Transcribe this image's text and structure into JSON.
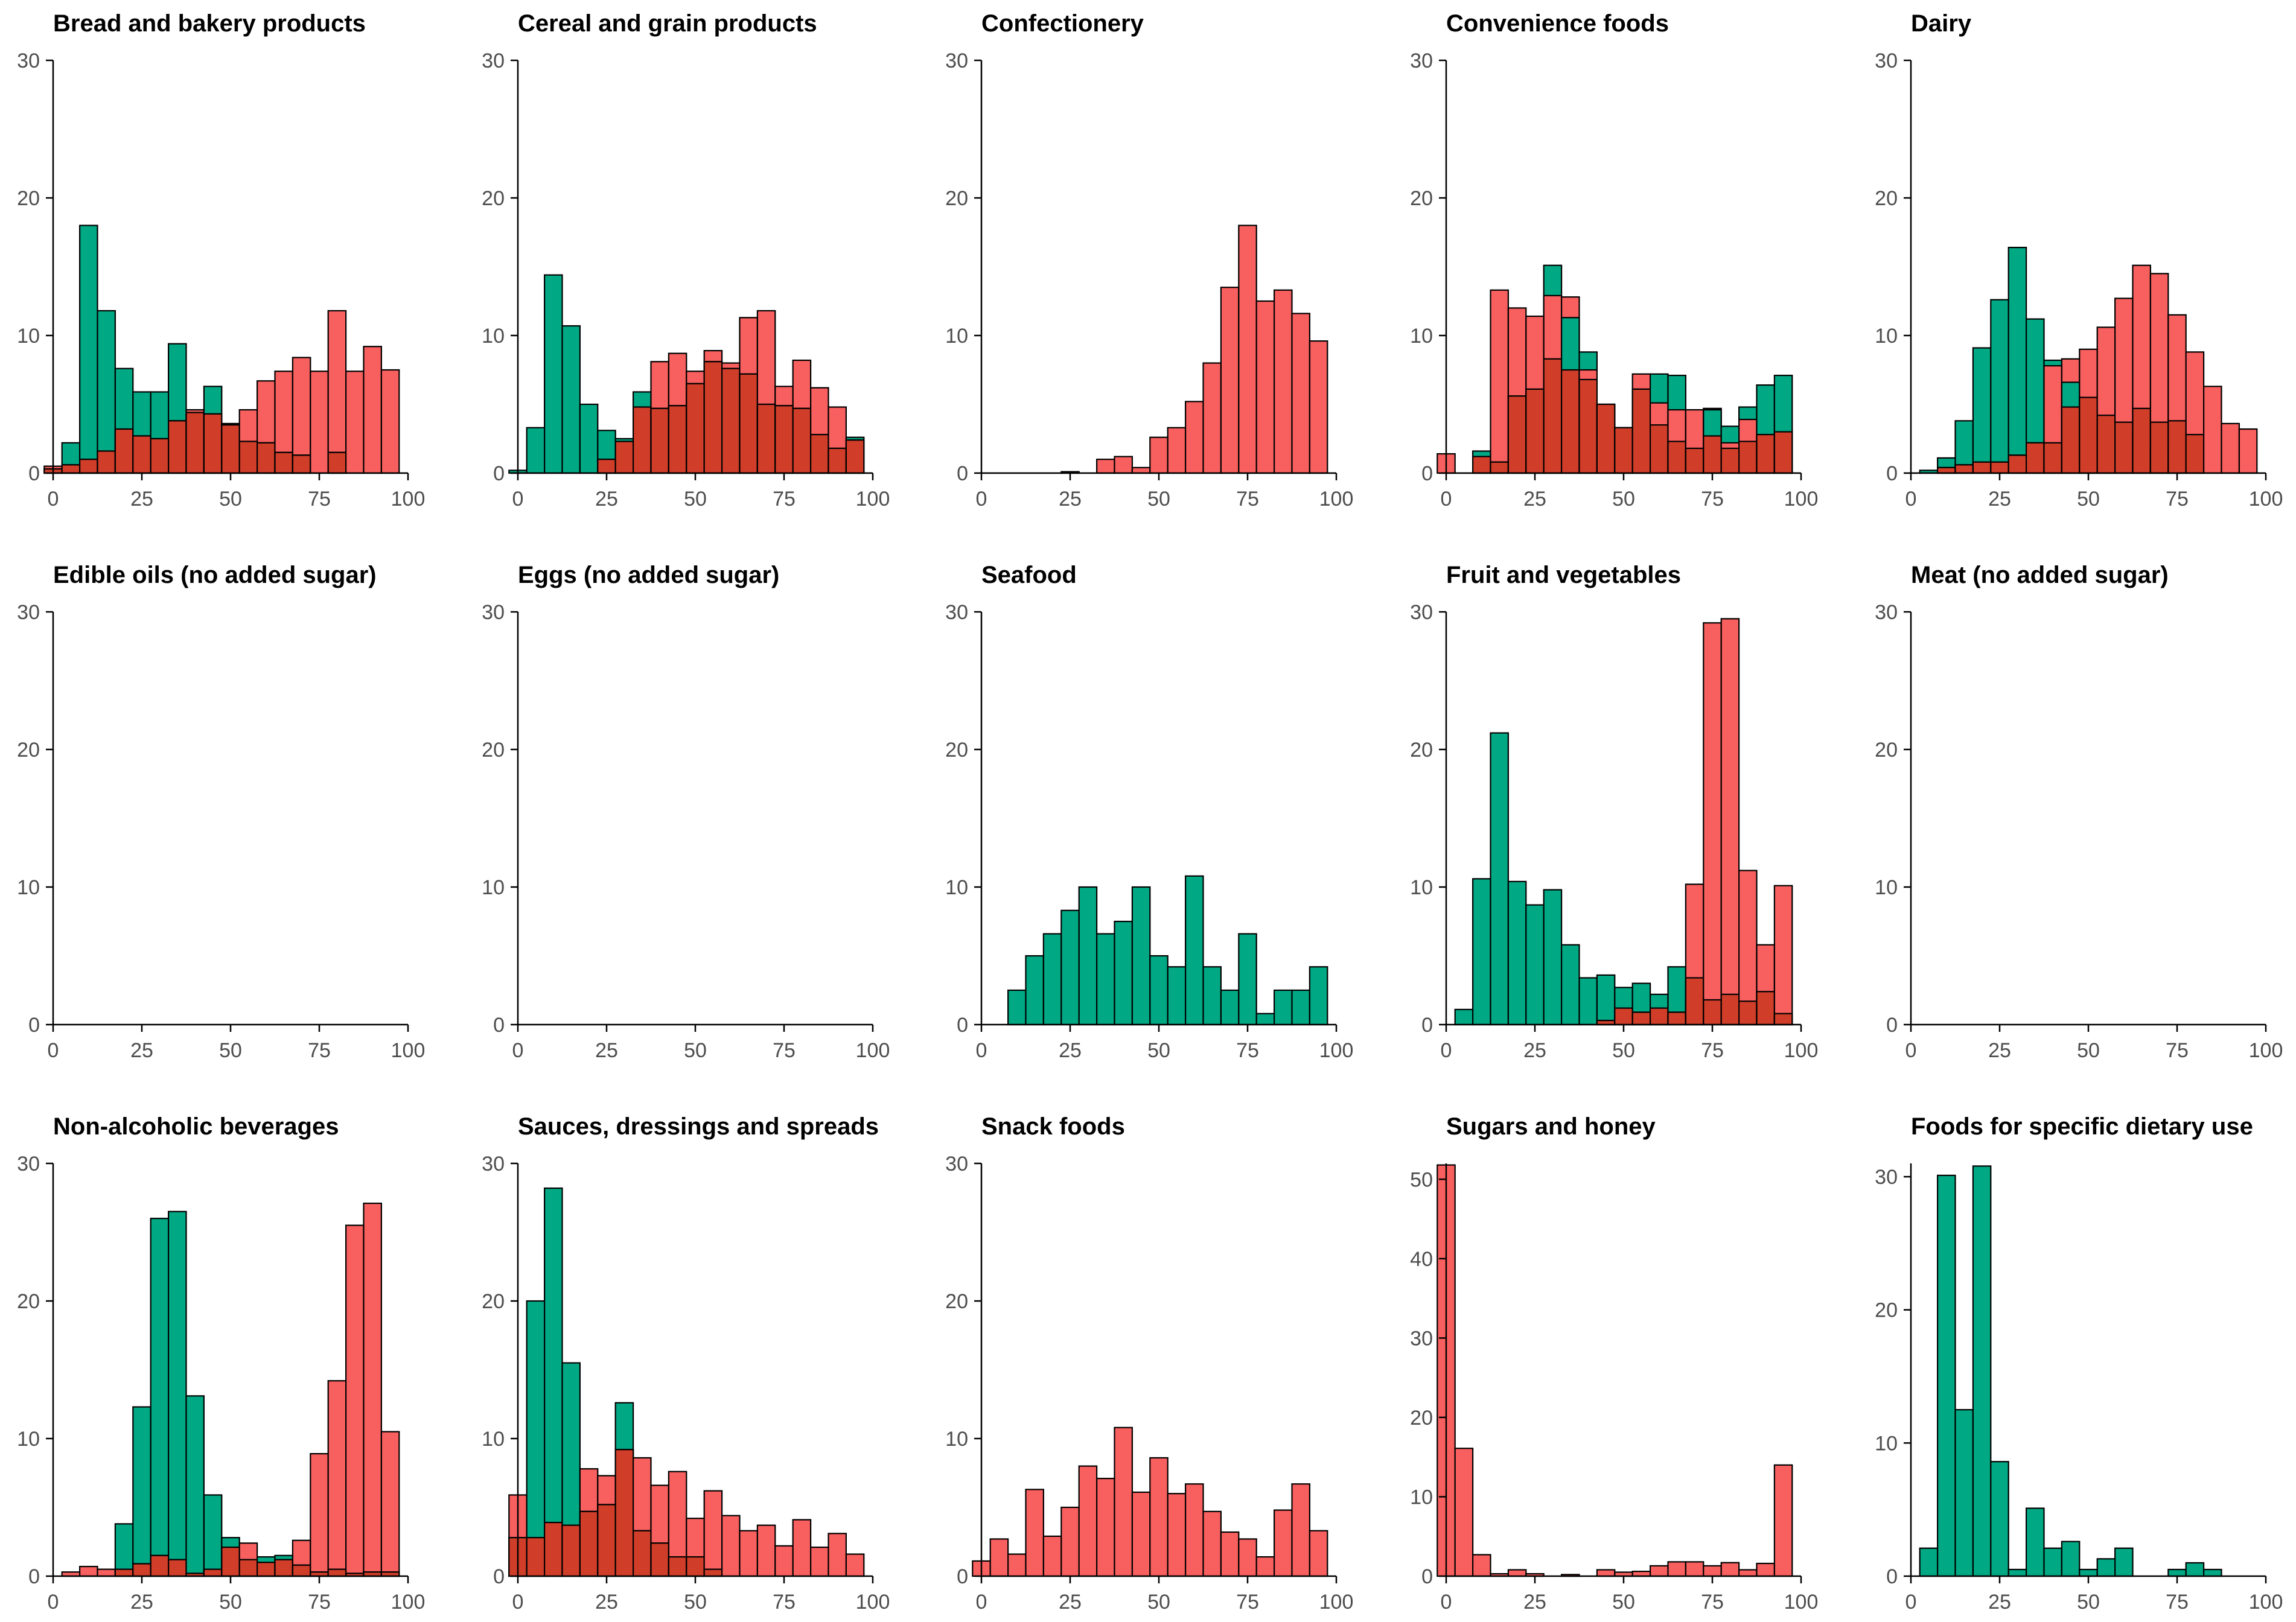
{
  "chart_data": {
    "type": "histogram-faceted",
    "colors": {
      "green": "#00A884",
      "red": "#F8605F",
      "overlap": "#D03E2A",
      "axis": "#000000",
      "tick_text": "#4d4d4d"
    },
    "x_ticks": [
      0,
      25,
      50,
      75,
      100
    ],
    "xlim": [
      0,
      100
    ],
    "bin_width": 5,
    "panels": [
      {
        "title": "Bread and bakery products",
        "y_ticks": [
          0,
          10,
          20,
          30
        ],
        "ylim": [
          0,
          30
        ],
        "green": [
          0.3,
          2.2,
          18,
          11.8,
          7.6,
          5.9,
          5.9,
          9.4,
          4.4,
          6.3,
          3.6,
          2.3,
          2.2,
          1.5,
          1.3,
          0,
          1.5,
          0,
          0,
          0
        ],
        "red": [
          0.5,
          0.6,
          1.0,
          1.6,
          3.2,
          2.7,
          2.5,
          3.8,
          4.6,
          4.3,
          3.5,
          4.6,
          6.7,
          7.4,
          8.4,
          7.4,
          11.8,
          7.4,
          9.2,
          7.5
        ],
        "overlap": [
          0.3,
          0.6,
          1.0,
          1.6,
          3.2,
          2.7,
          2.5,
          3.8,
          4.4,
          4.3,
          3.5,
          2.3,
          2.2,
          1.5,
          1.3,
          0,
          1.5,
          0,
          0,
          0
        ]
      },
      {
        "title": "Cereal and grain products",
        "y_ticks": [
          0,
          10,
          20,
          30
        ],
        "ylim": [
          0,
          30
        ],
        "green": [
          0.2,
          3.3,
          14.4,
          10.7,
          5.0,
          3.1,
          2.5,
          5.9,
          4.7,
          4.9,
          6.5,
          8.1,
          7.6,
          7.2,
          5.0,
          4.9,
          4.7,
          2.8,
          1.8,
          2.6
        ],
        "red": [
          0,
          0,
          0,
          0,
          0,
          1.0,
          2.3,
          4.8,
          8.1,
          8.7,
          7.4,
          8.9,
          8.0,
          11.3,
          11.8,
          6.3,
          8.2,
          6.2,
          4.8,
          2.4
        ],
        "overlap": [
          0,
          0,
          0,
          0,
          0,
          1.0,
          2.3,
          4.8,
          4.7,
          4.9,
          6.5,
          8.1,
          7.6,
          7.2,
          5.0,
          4.9,
          4.7,
          2.8,
          1.8,
          2.4
        ]
      },
      {
        "title": "Confectionery",
        "y_ticks": [
          0,
          10,
          20,
          30
        ],
        "ylim": [
          0,
          30
        ],
        "green": [
          0,
          0,
          0,
          0,
          0,
          0,
          0,
          0,
          0,
          0,
          0,
          0,
          0,
          0,
          0,
          0,
          0,
          0,
          0,
          0
        ],
        "red": [
          0,
          0,
          0,
          0,
          0,
          0.1,
          0,
          1.0,
          1.2,
          0.4,
          2.6,
          3.3,
          5.2,
          8.0,
          13.5,
          18.0,
          12.5,
          13.3,
          11.6,
          9.6
        ],
        "overlap": [
          0,
          0,
          0,
          0,
          0,
          0,
          0,
          0,
          0,
          0,
          0,
          0,
          0,
          0,
          0,
          0,
          0,
          0,
          0,
          0
        ]
      },
      {
        "title": "Convenience foods",
        "y_ticks": [
          0,
          10,
          20,
          30
        ],
        "ylim": [
          0,
          30
        ],
        "green": [
          0,
          0,
          1.6,
          0.8,
          5.6,
          6.1,
          15.1,
          11.3,
          8.8,
          5.0,
          3.3,
          6.1,
          7.2,
          7.1,
          4.6,
          4.6,
          3.4,
          4.8,
          6.4,
          7.1
        ],
        "red": [
          1.4,
          0,
          1.2,
          13.3,
          12.0,
          11.4,
          12.9,
          12.8,
          7.5,
          5.0,
          3.3,
          7.2,
          5.1,
          4.6,
          4.6,
          4.7,
          2.2,
          3.9,
          2.8,
          3.0
        ],
        "overlap": [
          0,
          0,
          1.2,
          0.8,
          5.6,
          6.1,
          8.3,
          7.5,
          6.8,
          5.0,
          3.3,
          6.1,
          3.5,
          2.3,
          1.8,
          2.7,
          1.8,
          2.3,
          2.8,
          3.0
        ]
      },
      {
        "title": "Dairy",
        "y_ticks": [
          0,
          10,
          20,
          30
        ],
        "ylim": [
          0,
          30
        ],
        "green": [
          0,
          0.2,
          1.1,
          3.8,
          9.1,
          12.6,
          16.4,
          11.2,
          8.2,
          6.6,
          5.1,
          3.8,
          2.4,
          3.2,
          1.9,
          1.5,
          0.9,
          0,
          0,
          0
        ],
        "red": [
          0,
          0,
          0.4,
          0.6,
          0.8,
          0.8,
          1.3,
          2.2,
          7.8,
          8.3,
          9.0,
          10.6,
          12.7,
          15.1,
          14.5,
          11.5,
          8.8,
          6.3,
          3.6,
          3.2
        ],
        "overlap": [
          0,
          0,
          0.4,
          0.6,
          0.8,
          0.8,
          1.3,
          2.2,
          2.2,
          4.8,
          5.5,
          4.2,
          3.7,
          4.7,
          3.7,
          3.8,
          2.8,
          2.3,
          1.9,
          1.5
        ]
      },
      {
        "title": "Edible oils (no added sugar)",
        "y_ticks": [
          0,
          10,
          20,
          30
        ],
        "ylim": [
          0,
          30
        ],
        "green": [
          0,
          0,
          0,
          0,
          0,
          0,
          0,
          0,
          0,
          0,
          0,
          0,
          0,
          0,
          0,
          0,
          0,
          0,
          0,
          0
        ],
        "red": [
          0,
          0,
          0,
          0,
          0,
          0,
          0,
          0,
          0,
          0,
          0,
          0,
          0,
          0,
          0,
          0,
          0,
          0,
          0,
          0
        ],
        "overlap": [
          0,
          0,
          0,
          0,
          0,
          0,
          0,
          0,
          0,
          0,
          0,
          0,
          0,
          0,
          0,
          0,
          0,
          0,
          0,
          0
        ]
      },
      {
        "title": "Eggs (no added sugar)",
        "y_ticks": [
          0,
          10,
          20,
          30
        ],
        "ylim": [
          0,
          30
        ],
        "green": [
          0,
          0,
          0,
          0,
          0,
          0,
          0,
          0,
          0,
          0,
          0,
          0,
          0,
          0,
          0,
          0,
          0,
          0,
          0,
          0
        ],
        "red": [
          0,
          0,
          0,
          0,
          0,
          0,
          0,
          0,
          0,
          0,
          0,
          0,
          0,
          0,
          0,
          0,
          0,
          0,
          0,
          0
        ],
        "overlap": [
          0,
          0,
          0,
          0,
          0,
          0,
          0,
          0,
          0,
          0,
          0,
          0,
          0,
          0,
          0,
          0,
          0,
          0,
          0,
          0
        ]
      },
      {
        "title": "Seafood",
        "y_ticks": [
          0,
          10,
          20,
          30
        ],
        "ylim": [
          0,
          30
        ],
        "green": [
          0,
          0,
          2.5,
          5.0,
          6.6,
          8.3,
          10.0,
          6.6,
          7.5,
          10.0,
          5.0,
          4.2,
          10.8,
          4.2,
          2.5,
          6.6,
          0.8,
          2.5,
          2.5,
          4.2
        ],
        "red": [
          0,
          0,
          0,
          0,
          0,
          0,
          0,
          0,
          0,
          0,
          0,
          0,
          0,
          0,
          0,
          0,
          0,
          0,
          0,
          0
        ],
        "overlap": [
          0,
          0,
          0,
          0,
          0,
          0,
          0,
          0,
          0,
          0,
          0,
          0,
          0,
          0,
          0,
          0,
          0,
          0,
          0,
          0
        ]
      },
      {
        "title": "Fruit and vegetables",
        "y_ticks": [
          0,
          10,
          20,
          30
        ],
        "ylim": [
          0,
          30
        ],
        "green": [
          0,
          1.1,
          10.6,
          21.2,
          10.4,
          8.7,
          9.8,
          5.8,
          3.4,
          3.6,
          2.7,
          3.0,
          2.2,
          4.2,
          1.7,
          1.3,
          1.7,
          0.5,
          1.4,
          0.5
        ],
        "red": [
          0,
          0,
          0,
          0,
          0,
          0,
          0,
          0,
          0,
          0.3,
          1.2,
          0.9,
          1.2,
          0.9,
          10.2,
          29.2,
          29.5,
          11.2,
          5.8,
          10.1
        ],
        "overlap": [
          0,
          0,
          0,
          0,
          0,
          0,
          0,
          0,
          0,
          0.3,
          1.2,
          0.9,
          1.2,
          0.9,
          3.4,
          1.8,
          2.2,
          1.7,
          2.4,
          0.8
        ]
      },
      {
        "title": "Meat (no added sugar)",
        "y_ticks": [
          0,
          10,
          20,
          30
        ],
        "ylim": [
          0,
          30
        ],
        "green": [
          0,
          0,
          0,
          0,
          0,
          0,
          0,
          0,
          0,
          0,
          0,
          0,
          0,
          0,
          0,
          0,
          0,
          0,
          0,
          0
        ],
        "red": [
          0,
          0,
          0,
          0,
          0,
          0,
          0,
          0,
          0,
          0,
          0,
          0,
          0,
          0,
          0,
          0,
          0,
          0,
          0,
          0
        ],
        "overlap": [
          0,
          0,
          0,
          0,
          0,
          0,
          0,
          0,
          0,
          0,
          0,
          0,
          0,
          0,
          0,
          0,
          0,
          0,
          0,
          0
        ]
      },
      {
        "title": "Non-alcoholic beverages",
        "y_ticks": [
          0,
          10,
          20,
          30
        ],
        "ylim": [
          0,
          30
        ],
        "green": [
          0,
          0,
          0,
          0,
          3.8,
          12.3,
          26.0,
          26.5,
          13.1,
          5.9,
          2.8,
          1.2,
          1.4,
          1.5,
          0.8,
          0.3,
          0.5,
          0.2,
          0.3,
          0.3
        ],
        "red": [
          0,
          0.3,
          0.7,
          0.5,
          0.5,
          0.9,
          1.5,
          1.2,
          0.2,
          0.5,
          2.1,
          2.4,
          1.0,
          1.2,
          2.6,
          8.9,
          14.2,
          25.5,
          27.1,
          10.5
        ],
        "overlap": [
          0,
          0,
          0,
          0,
          0.5,
          0.9,
          1.5,
          1.2,
          0.2,
          0.5,
          2.1,
          1.2,
          1.0,
          1.2,
          0.8,
          0.3,
          0.5,
          0.2,
          0.3,
          0.3
        ]
      },
      {
        "title": "Sauces, dressings and spreads",
        "y_ticks": [
          0,
          10,
          20,
          30
        ],
        "ylim": [
          0,
          30
        ],
        "green": [
          2.8,
          20.0,
          28.2,
          15.5,
          4.7,
          5.2,
          12.6,
          3.3,
          2.4,
          1.4,
          1.4,
          0.5,
          0,
          0,
          0,
          0,
          0,
          0,
          0,
          0
        ],
        "red": [
          5.9,
          2.8,
          3.9,
          3.7,
          7.8,
          7.3,
          9.2,
          8.6,
          6.6,
          7.6,
          4.2,
          6.2,
          4.4,
          3.3,
          3.7,
          2.2,
          4.1,
          2.1,
          3.1,
          1.6
        ],
        "overlap": [
          2.8,
          2.8,
          3.9,
          3.7,
          4.7,
          5.2,
          9.2,
          3.3,
          2.4,
          1.4,
          1.4,
          0.5,
          0,
          0,
          0,
          0,
          0,
          0,
          0,
          0
        ]
      },
      {
        "title": "Snack foods",
        "y_ticks": [
          0,
          10,
          20,
          30
        ],
        "ylim": [
          0,
          30
        ],
        "green": [
          0,
          0,
          0,
          0,
          0,
          0,
          0,
          0,
          0,
          0,
          0,
          0,
          0,
          0,
          0,
          0,
          0,
          0,
          0,
          0
        ],
        "red": [
          1.1,
          2.7,
          1.6,
          6.3,
          2.9,
          5.0,
          8.0,
          7.1,
          10.8,
          6.1,
          8.6,
          6.0,
          6.7,
          4.7,
          3.2,
          2.7,
          1.4,
          4.8,
          6.7,
          3.3
        ],
        "overlap": [
          0,
          0,
          0,
          0,
          0,
          0,
          0,
          0,
          0,
          0,
          0,
          0,
          0,
          0,
          0,
          0,
          0,
          0,
          0,
          0
        ]
      },
      {
        "title": "Sugars and honey",
        "y_ticks": [
          0,
          10,
          20,
          30,
          40,
          50
        ],
        "ylim": [
          0,
          52
        ],
        "green": [
          0,
          0,
          0,
          0,
          0,
          0,
          0,
          0,
          0,
          0,
          0,
          0,
          0,
          0,
          0,
          0,
          0,
          0,
          0,
          0
        ],
        "red": [
          51.8,
          16.1,
          2.7,
          0.3,
          0.8,
          0.3,
          0,
          0.2,
          0,
          0.8,
          0.5,
          0.6,
          1.3,
          1.8,
          1.8,
          1.3,
          1.7,
          0.8,
          1.6,
          14.0
        ],
        "overlap": [
          0,
          0,
          0,
          0,
          0,
          0,
          0,
          0,
          0,
          0,
          0,
          0,
          0,
          0,
          0,
          0,
          0,
          0,
          0,
          0
        ]
      },
      {
        "title": "Foods for specific dietary use",
        "y_ticks": [
          0,
          10,
          20,
          30
        ],
        "ylim": [
          0,
          31
        ],
        "green": [
          0,
          2.1,
          30.1,
          12.5,
          30.8,
          8.6,
          0.5,
          5.1,
          2.1,
          2.6,
          0.5,
          1.3,
          2.1,
          0,
          0,
          0.5,
          1.0,
          0.5,
          0,
          0
        ],
        "red": [
          0,
          0,
          0,
          0,
          0,
          0,
          0,
          0,
          0,
          0,
          0,
          0,
          0,
          0,
          0,
          0,
          0,
          0,
          0,
          0
        ],
        "overlap": [
          0,
          0,
          0,
          0,
          0,
          0,
          0,
          0,
          0,
          0,
          0,
          0,
          0,
          0,
          0,
          0,
          0,
          0,
          0,
          0
        ]
      }
    ]
  }
}
